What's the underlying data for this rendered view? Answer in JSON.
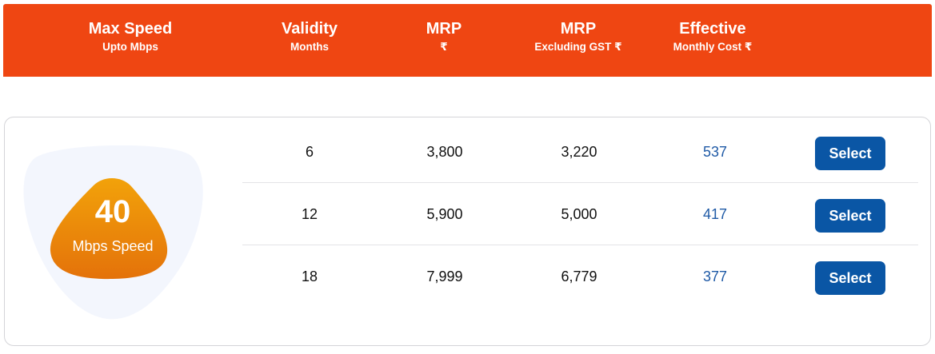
{
  "header": {
    "columns": [
      {
        "title": "Max Speed",
        "sub": "Upto Mbps"
      },
      {
        "title": "Validity",
        "sub": "Months"
      },
      {
        "title": "MRP",
        "sub": "₹"
      },
      {
        "title": "MRP",
        "sub": "Excluding GST ₹"
      },
      {
        "title": "Effective",
        "sub": "Monthly Cost ₹"
      }
    ]
  },
  "plan": {
    "speed": "40",
    "speed_label": "Mbps Speed",
    "rows": [
      {
        "validity": "6",
        "mrp": "3,800",
        "mrp_ex_gst": "3,220",
        "effective": "537",
        "button": "Select"
      },
      {
        "validity": "12",
        "mrp": "5,900",
        "mrp_ex_gst": "5,000",
        "effective": "417",
        "button": "Select"
      },
      {
        "validity": "18",
        "mrp": "7,999",
        "mrp_ex_gst": "6,779",
        "effective": "377",
        "button": "Select"
      }
    ]
  },
  "colors": {
    "header_bg": "#ef4612",
    "badge_gradient_start": "#f2a20a",
    "badge_gradient_end": "#e4720a",
    "effective_text": "#1f5aa6",
    "button_bg": "#0a56a5"
  },
  "icons": {
    "rupee": "rupee-symbol"
  }
}
